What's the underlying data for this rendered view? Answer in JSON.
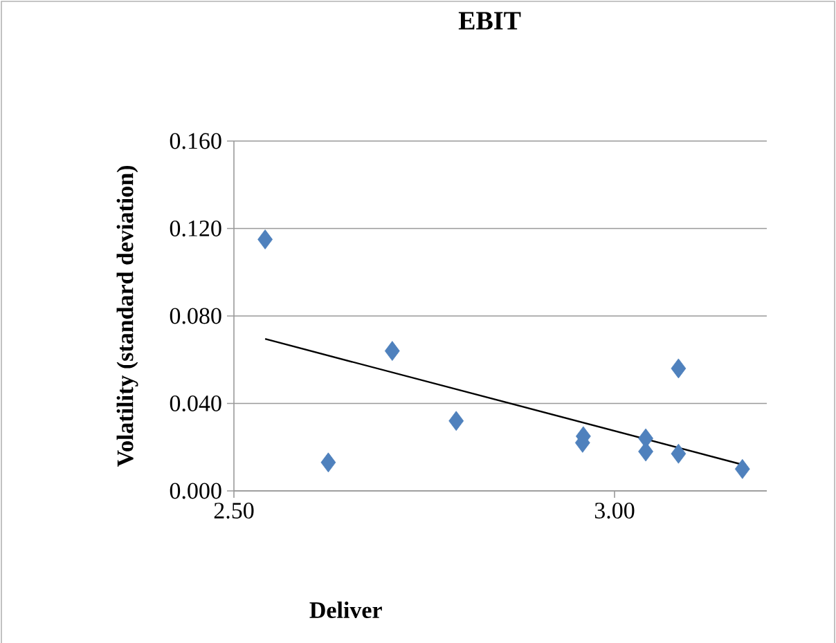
{
  "chart_data": {
    "type": "scatter",
    "title": "EBIT",
    "xlabel": "Deliver",
    "ylabel": "Volatility (standard deviation)",
    "xlim": [
      2.5,
      3.2
    ],
    "ylim": [
      0,
      0.16
    ],
    "xticks": [
      {
        "value": 2.5,
        "label": "2.50"
      },
      {
        "value": 3.0,
        "label": "3.00"
      }
    ],
    "yticks": [
      {
        "value": 0,
        "label": "0.000"
      },
      {
        "value": 0.04,
        "label": "0.040"
      },
      {
        "value": 0.08,
        "label": "0.080"
      },
      {
        "value": 0.12,
        "label": "0.120"
      },
      {
        "value": 0.16,
        "label": "0.160"
      }
    ],
    "grid": "y",
    "series": [
      {
        "marker": "diamond",
        "color": "#4f81bd",
        "x": [
          2.541,
          2.624,
          2.708,
          2.792,
          2.959,
          2.958,
          3.041,
          3.041,
          3.084,
          3.084,
          3.168
        ],
        "values": [
          0.115,
          0.013,
          0.064,
          0.032,
          0.025,
          0.022,
          0.024,
          0.018,
          0.056,
          0.017,
          0.01
        ]
      },
      {
        "type": "line",
        "color": "#000000",
        "x": [
          2.541,
          3.168
        ],
        "values": [
          0.0695,
          0.012
        ]
      }
    ]
  }
}
